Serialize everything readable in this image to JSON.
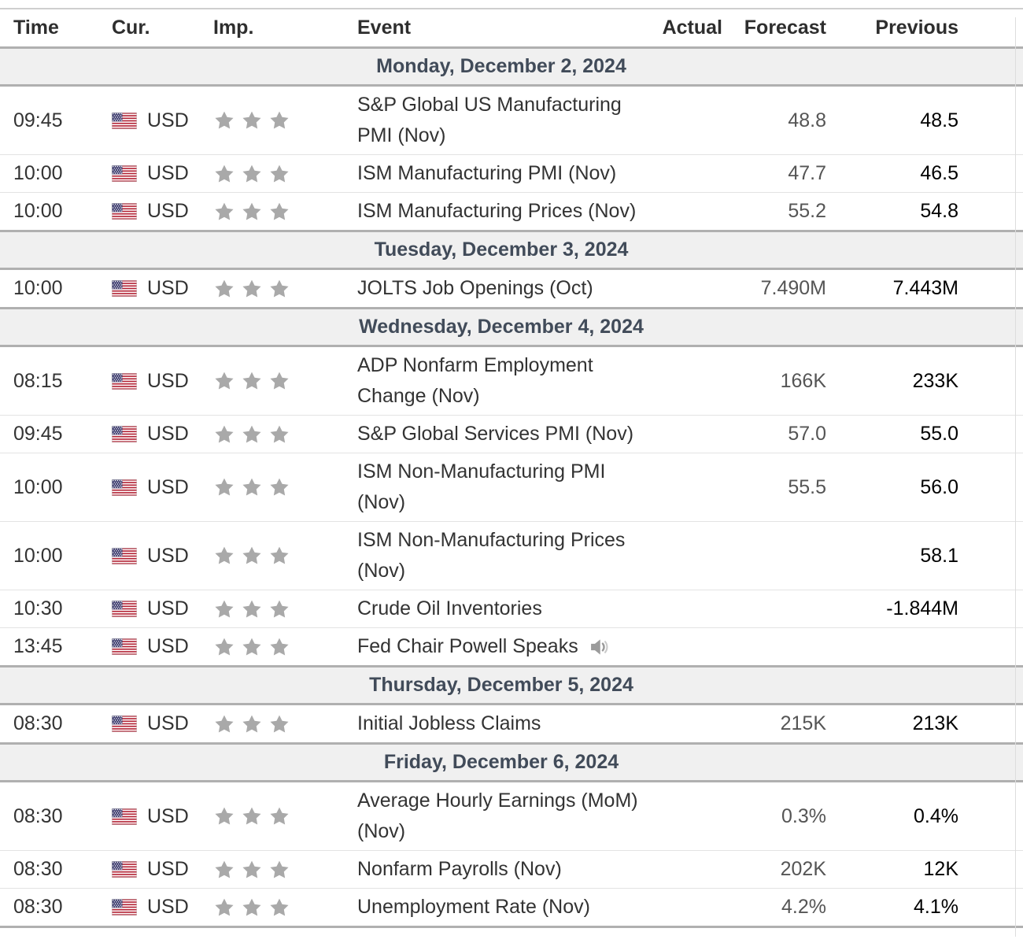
{
  "table": {
    "columns": [
      "Time",
      "Cur.",
      "Imp.",
      "Event",
      "Actual",
      "Forecast",
      "Previous"
    ],
    "rows": [
      {
        "type": "day",
        "label": "Monday, December 2, 2024"
      },
      {
        "type": "event",
        "time": "09:45",
        "currency": "USD",
        "importance": 3,
        "event_lines": [
          "S&P Global US Manufacturing",
          "PMI (Nov)"
        ],
        "actual": "",
        "forecast": "48.8",
        "previous": "48.5",
        "speaker": false
      },
      {
        "type": "event",
        "time": "10:00",
        "currency": "USD",
        "importance": 3,
        "event_lines": [
          "ISM Manufacturing PMI (Nov)"
        ],
        "actual": "",
        "forecast": "47.7",
        "previous": "46.5",
        "speaker": false
      },
      {
        "type": "event",
        "time": "10:00",
        "currency": "USD",
        "importance": 3,
        "event_lines": [
          "ISM Manufacturing Prices (Nov)"
        ],
        "actual": "",
        "forecast": "55.2",
        "previous": "54.8",
        "speaker": false
      },
      {
        "type": "day",
        "label": "Tuesday, December 3, 2024"
      },
      {
        "type": "event",
        "time": "10:00",
        "currency": "USD",
        "importance": 3,
        "event_lines": [
          "JOLTS Job Openings (Oct)"
        ],
        "actual": "",
        "forecast": "7.490M",
        "previous": "7.443M",
        "speaker": false
      },
      {
        "type": "day",
        "label": "Wednesday, December 4, 2024"
      },
      {
        "type": "event",
        "time": "08:15",
        "currency": "USD",
        "importance": 3,
        "event_lines": [
          "ADP Nonfarm Employment",
          "Change (Nov)"
        ],
        "actual": "",
        "forecast": "166K",
        "previous": "233K",
        "speaker": false
      },
      {
        "type": "event",
        "time": "09:45",
        "currency": "USD",
        "importance": 3,
        "event_lines": [
          "S&P Global Services PMI (Nov)"
        ],
        "actual": "",
        "forecast": "57.0",
        "previous": "55.0",
        "speaker": false
      },
      {
        "type": "event",
        "time": "10:00",
        "currency": "USD",
        "importance": 3,
        "event_lines": [
          "ISM Non-Manufacturing PMI",
          "(Nov)"
        ],
        "actual": "",
        "forecast": "55.5",
        "previous": "56.0",
        "speaker": false
      },
      {
        "type": "event",
        "time": "10:00",
        "currency": "USD",
        "importance": 3,
        "event_lines": [
          "ISM Non-Manufacturing Prices",
          "(Nov)"
        ],
        "actual": "",
        "forecast": "",
        "previous": "58.1",
        "speaker": false
      },
      {
        "type": "event",
        "time": "10:30",
        "currency": "USD",
        "importance": 3,
        "event_lines": [
          "Crude Oil Inventories"
        ],
        "actual": "",
        "forecast": "",
        "previous": "-1.844M",
        "speaker": false
      },
      {
        "type": "event",
        "time": "13:45",
        "currency": "USD",
        "importance": 3,
        "event_lines": [
          "Fed Chair Powell Speaks"
        ],
        "actual": "",
        "forecast": "",
        "previous": "",
        "speaker": true
      },
      {
        "type": "day",
        "label": "Thursday, December 5, 2024"
      },
      {
        "type": "event",
        "time": "08:30",
        "currency": "USD",
        "importance": 3,
        "event_lines": [
          "Initial Jobless Claims"
        ],
        "actual": "",
        "forecast": "215K",
        "previous": "213K",
        "speaker": false
      },
      {
        "type": "day",
        "label": "Friday, December 6, 2024"
      },
      {
        "type": "event",
        "time": "08:30",
        "currency": "USD",
        "importance": 3,
        "event_lines": [
          "Average Hourly Earnings (MoM)",
          "(Nov)"
        ],
        "actual": "",
        "forecast": "0.3%",
        "previous": "0.4%",
        "speaker": false
      },
      {
        "type": "event",
        "time": "08:30",
        "currency": "USD",
        "importance": 3,
        "event_lines": [
          "Nonfarm Payrolls (Nov)"
        ],
        "actual": "",
        "forecast": "202K",
        "previous": "12K",
        "speaker": false
      },
      {
        "type": "event",
        "time": "08:30",
        "currency": "USD",
        "importance": 3,
        "event_lines": [
          "Unemployment Rate (Nov)"
        ],
        "actual": "",
        "forecast": "4.2%",
        "previous": "4.1%",
        "speaker": false
      }
    ]
  },
  "icons": {
    "flag": "us-flag-icon",
    "importance": "star-icon",
    "audio": "speaker-icon"
  },
  "colors": {
    "day_header_bg": "#f0f0f0",
    "day_header_text": "#414b59",
    "header_text": "#2e2e2e",
    "event_text": "#333333",
    "forecast_text": "#555555",
    "previous_text": "#000000",
    "star": "#a9a9a9",
    "border_heavy": "#b0b0b0",
    "border_light": "#e3e3e3",
    "flag_red": "#b22234",
    "flag_blue": "#3c3b6e"
  }
}
